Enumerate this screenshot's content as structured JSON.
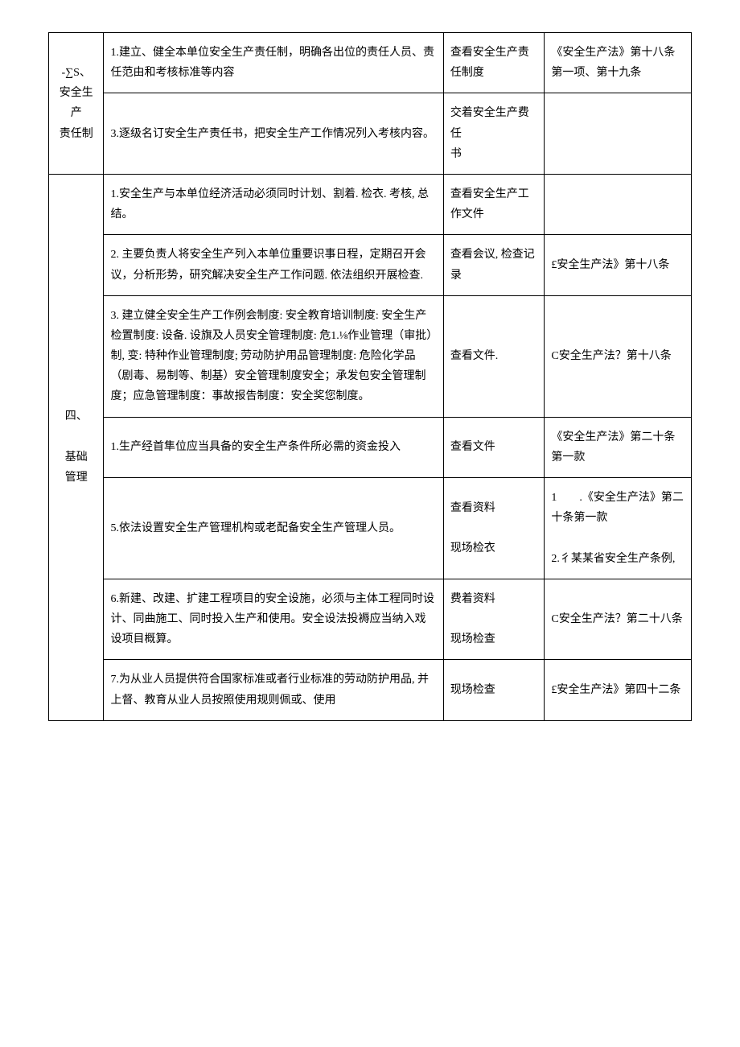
{
  "section3": {
    "header": "-∑S、\n安全生产\n责任制",
    "rows": [
      {
        "content": "1.建立、健全本单位安全生产责任制，明确各出位的责任人员、责任范由和考核标准等内容",
        "method": "查看安全生产责任制度",
        "basis": "《安全生产法》第十八条第一项、第十九条"
      },
      {
        "content": "3.逐级名订安全生产责任书，把安全生产工作情况列入考核内容。",
        "method": "交着安全生产费任\n书",
        "basis": ""
      }
    ]
  },
  "section4": {
    "header": "四、\n\n基础\n管理",
    "rows": [
      {
        "content": "1.安全生产与本单位经济活动必须同时计划、割着. 检衣. 考核, 总结。",
        "method": "查看安全生产工作文件",
        "basis": ""
      },
      {
        "content": "2. 主要负责人将安全生产列入本单位重要识事日程，定期召开会议，分析形势，研究解决安全生产工作问题. 依法组织开展检查.",
        "method": "查看会议, 检查记录",
        "basis": "£安全生产法》第十八条"
      },
      {
        "content": "3. 建立健全安全生产工作例会制度: 安全教育培训制度: 安全生产检置制度: 设备. 设旗及人员安全管理制度: 危1.⅛作业管理（审批）制, 变: 特种作业管理制度; 劳动防护用品管理制度: 危险化学品（剧毒、易制等、制基）安全管理制度安全；承发包安全管理制度；应急管理制度：事故报告制度：安全奖您制度。",
        "method": "查看文件.",
        "basis": "C安全生产法？第十八条"
      },
      {
        "content": "1.生产经首隼位应当具备的安全生产条件所必需的资金投入",
        "method": "查看文件",
        "basis": "《安全生产法》第二十条第一款"
      },
      {
        "content": "5.依法设置安全生产管理机构或老配备安全生产管理人员。",
        "method": "查看资料\n\n现场检衣",
        "basis": "1　　.《安全生产法》第二十条第一款\n\n2.彳某某省安全生产条例,"
      },
      {
        "content": "6.新建、改建、扩建工程项目的安全设施，必须与主体工程同时设计、同曲施工、同时投入生产和使用。安全设法投褥应当纳入戏设项目概算。",
        "method": "费着资料\n\n现场检查",
        "basis": "C安全生产法？第二十八条"
      },
      {
        "content": "7.为从业人员提供符合国家标准或者行业标准的劳动防护用品, 并上督、教育从业人员按照使用规则佩或、使用",
        "method": "现场检查",
        "basis": "£安全生产法》第四十二条"
      }
    ]
  }
}
